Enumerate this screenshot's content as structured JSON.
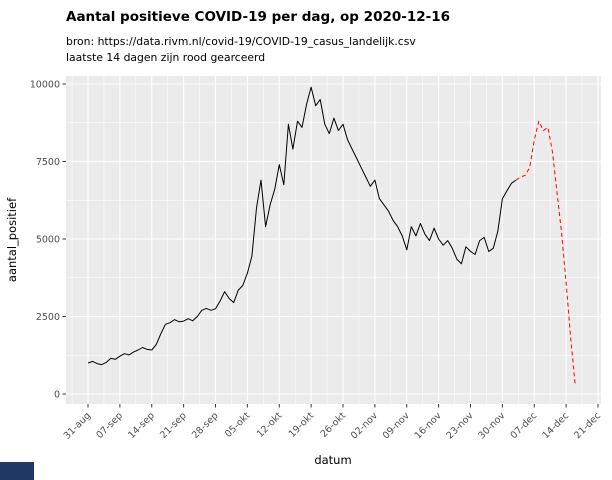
{
  "window": {
    "corner_color": "#1F3864"
  },
  "chart": {
    "title": "Aantal positieve COVID-19 per dag, op 2020-12-16",
    "subtitle_source": "bron: https://data.rivm.nl/covid-19/COVID-19_casus_landelijk.csv",
    "subtitle_note": "laatste 14 dagen zijn rood gearceerd",
    "xlabel": "datum",
    "ylabel": "aantal_positief"
  },
  "chart_data": {
    "type": "line",
    "title": "Aantal positieve COVID-19 per dag, op 2020-12-16",
    "xlabel": "datum",
    "ylabel": "aantal_positief",
    "ylim": [
      0,
      10000
    ],
    "y_ticks": [
      0,
      2500,
      5000,
      7500,
      10000
    ],
    "x_tick_labels": [
      "31-aug",
      "07-sep",
      "14-sep",
      "21-sep",
      "28-sep",
      "05-okt",
      "12-okt",
      "19-okt",
      "26-okt",
      "02-nov",
      "09-nov",
      "16-nov",
      "23-nov",
      "30-nov",
      "07-dec",
      "14-dec",
      "21-dec"
    ],
    "x_axis_span_days": 112,
    "panel_bg": "#EBEBEB",
    "grid_color": "#FFFFFF",
    "axis_text_color": "#4D4D4D",
    "tick_mark_color": "#333333",
    "highlight_last_n": 14,
    "highlight_color": "#FF0000",
    "highlight_style": "dashed",
    "legend": "none",
    "x_dates": [
      "2020-08-31",
      "2020-09-01",
      "2020-09-02",
      "2020-09-03",
      "2020-09-04",
      "2020-09-05",
      "2020-09-06",
      "2020-09-07",
      "2020-09-08",
      "2020-09-09",
      "2020-09-10",
      "2020-09-11",
      "2020-09-12",
      "2020-09-13",
      "2020-09-14",
      "2020-09-15",
      "2020-09-16",
      "2020-09-17",
      "2020-09-18",
      "2020-09-19",
      "2020-09-20",
      "2020-09-21",
      "2020-09-22",
      "2020-09-23",
      "2020-09-24",
      "2020-09-25",
      "2020-09-26",
      "2020-09-27",
      "2020-09-28",
      "2020-09-29",
      "2020-09-30",
      "2020-10-01",
      "2020-10-02",
      "2020-10-03",
      "2020-10-04",
      "2020-10-05",
      "2020-10-06",
      "2020-10-07",
      "2020-10-08",
      "2020-10-09",
      "2020-10-10",
      "2020-10-11",
      "2020-10-12",
      "2020-10-13",
      "2020-10-14",
      "2020-10-15",
      "2020-10-16",
      "2020-10-17",
      "2020-10-18",
      "2020-10-19",
      "2020-10-20",
      "2020-10-21",
      "2020-10-22",
      "2020-10-23",
      "2020-10-24",
      "2020-10-25",
      "2020-10-26",
      "2020-10-27",
      "2020-10-28",
      "2020-10-29",
      "2020-10-30",
      "2020-10-31",
      "2020-11-01",
      "2020-11-02",
      "2020-11-03",
      "2020-11-04",
      "2020-11-05",
      "2020-11-06",
      "2020-11-07",
      "2020-11-08",
      "2020-11-09",
      "2020-11-10",
      "2020-11-11",
      "2020-11-12",
      "2020-11-13",
      "2020-11-14",
      "2020-11-15",
      "2020-11-16",
      "2020-11-17",
      "2020-11-18",
      "2020-11-19",
      "2020-11-20",
      "2020-11-21",
      "2020-11-22",
      "2020-11-23",
      "2020-11-24",
      "2020-11-25",
      "2020-11-26",
      "2020-11-27",
      "2020-11-28",
      "2020-11-29",
      "2020-11-30",
      "2020-12-01",
      "2020-12-02",
      "2020-12-03",
      "2020-12-04",
      "2020-12-05",
      "2020-12-06",
      "2020-12-07",
      "2020-12-08",
      "2020-12-09",
      "2020-12-10",
      "2020-12-11",
      "2020-12-12",
      "2020-12-13",
      "2020-12-14",
      "2020-12-15",
      "2020-12-16"
    ],
    "series": [
      {
        "name": "aantal_positief",
        "color": "#000000",
        "style": "solid",
        "values": [
          1000,
          1050,
          980,
          950,
          1020,
          1150,
          1120,
          1220,
          1300,
          1260,
          1350,
          1420,
          1500,
          1440,
          1420,
          1600,
          1950,
          2250,
          2300,
          2400,
          2330,
          2350,
          2430,
          2360,
          2500,
          2700,
          2760,
          2700,
          2750,
          3000,
          3300,
          3080,
          2950,
          3350,
          3500,
          3900,
          4450,
          6000,
          6900,
          5400,
          6100,
          6600,
          7400,
          6750,
          8700,
          7900,
          8800,
          8600,
          9350,
          9900,
          9300,
          9500,
          8700,
          8400,
          8900,
          8500,
          8700,
          8200,
          7900,
          7600,
          7300,
          7000,
          6700,
          6900,
          6300,
          6100,
          5900,
          5600,
          5400,
          5100,
          4650,
          5400,
          5100,
          5500,
          5150,
          4950,
          5350,
          5000,
          4800,
          4950,
          4700,
          4350,
          4200,
          4750,
          4600,
          4500,
          4950,
          5050,
          4600,
          4700,
          5250,
          6300,
          6550,
          6800,
          6900,
          7000,
          7050,
          7300,
          8200,
          8800,
          8500,
          8600,
          7800,
          6500,
          5200,
          3600,
          1800,
          300
        ]
      }
    ]
  }
}
